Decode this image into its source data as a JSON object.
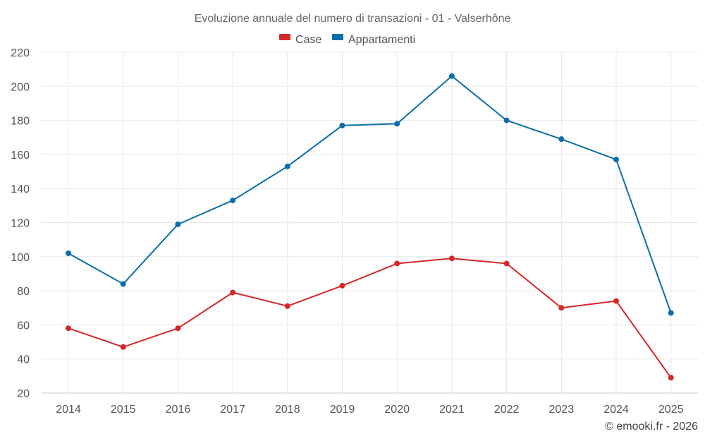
{
  "chart_data": {
    "type": "line",
    "title": "Evoluzione annuale del numero di transazioni - 01 - Valserhône",
    "categories": [
      "2014",
      "2015",
      "2016",
      "2017",
      "2018",
      "2019",
      "2020",
      "2021",
      "2022",
      "2023",
      "2024",
      "2025"
    ],
    "series": [
      {
        "name": "Case",
        "color": "#d62728",
        "values": [
          58,
          47,
          58,
          79,
          71,
          83,
          96,
          99,
          96,
          70,
          74,
          29
        ]
      },
      {
        "name": "Appartamenti",
        "color": "#0b6ea8",
        "values": [
          102,
          84,
          119,
          133,
          153,
          177,
          178,
          206,
          180,
          169,
          157,
          67
        ]
      }
    ],
    "ylim": [
      20,
      220
    ],
    "yticks": [
      20,
      40,
      60,
      80,
      100,
      120,
      140,
      160,
      180,
      200,
      220
    ],
    "xlabel": "",
    "ylabel": "",
    "legend_position": "top-center",
    "grid": true
  },
  "credit": "© emooki.fr - 2026"
}
